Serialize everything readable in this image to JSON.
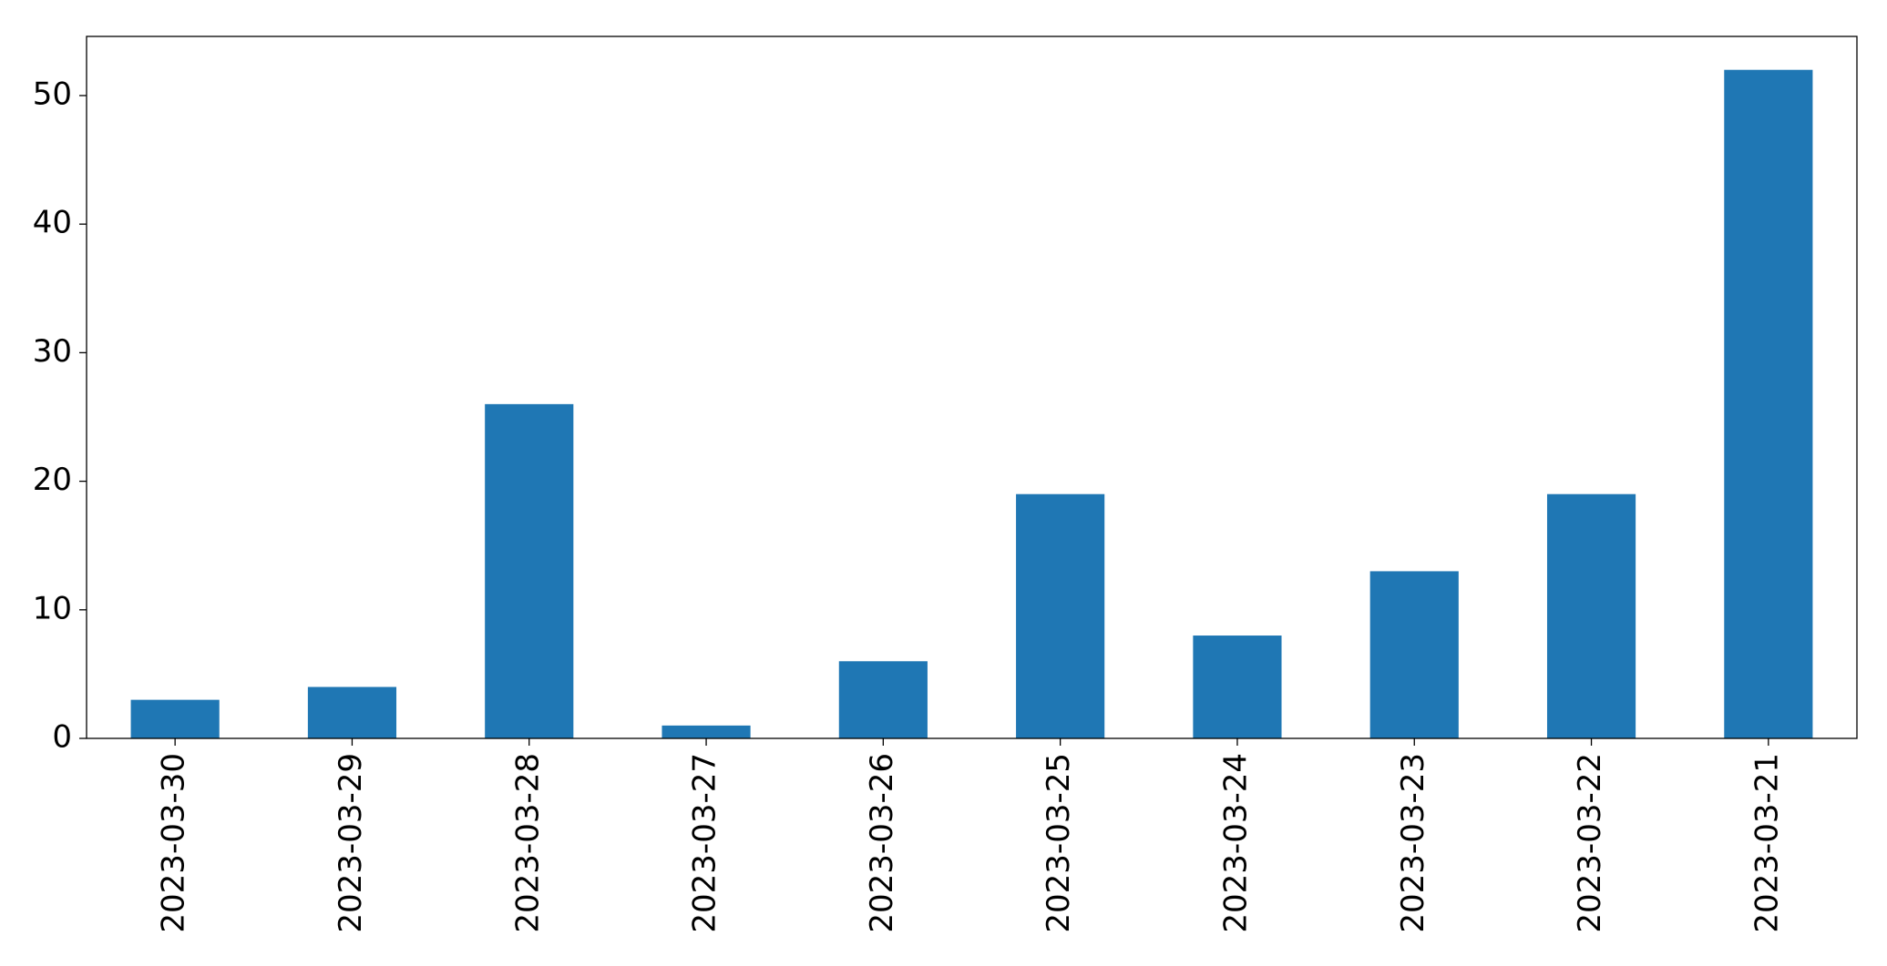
{
  "chart_data": {
    "type": "bar",
    "categories": [
      "2023-03-30",
      "2023-03-29",
      "2023-03-28",
      "2023-03-27",
      "2023-03-26",
      "2023-03-25",
      "2023-03-24",
      "2023-03-23",
      "2023-03-22",
      "2023-03-21"
    ],
    "values": [
      3,
      4,
      26,
      1,
      6,
      19,
      8,
      13,
      19,
      52
    ],
    "color": "#1f77b4",
    "ylim": [
      0,
      54.6
    ],
    "yticks": [
      0,
      10,
      20,
      30,
      40,
      50
    ],
    "grid": false
  }
}
